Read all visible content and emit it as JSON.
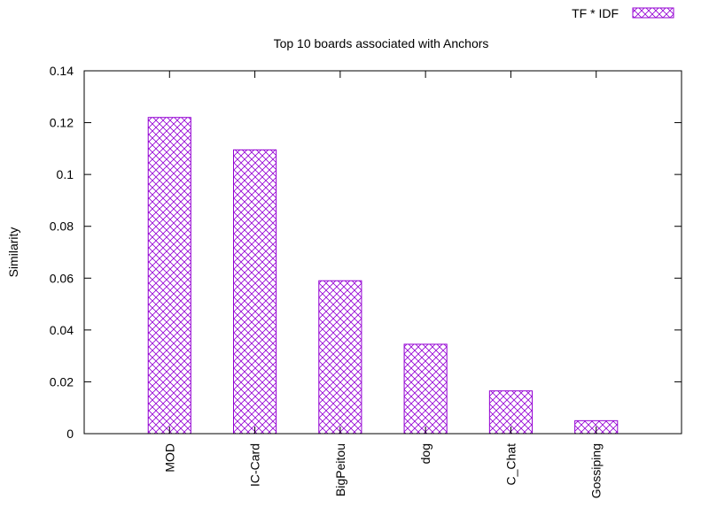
{
  "chart_data": {
    "type": "bar",
    "title": "Top 10 boards associated with Anchors",
    "xlabel": "",
    "ylabel": "Similarity",
    "categories": [
      "MOD",
      "IC-Card",
      "BigPeitou",
      "dog",
      "C_Chat",
      "Gossiping"
    ],
    "series": [
      {
        "name": "TF * IDF",
        "values": [
          0.122,
          0.1095,
          0.059,
          0.0345,
          0.0165,
          0.005
        ]
      }
    ],
    "ylim": [
      0,
      0.14
    ],
    "yticks": [
      "0",
      "0.02",
      "0.04",
      "0.06",
      "0.08",
      "0.1",
      "0.12",
      "0.14"
    ],
    "grid": false,
    "legend_position": "top-right",
    "colors": {
      "bar": "#9400d3",
      "axis": "#000000"
    }
  }
}
